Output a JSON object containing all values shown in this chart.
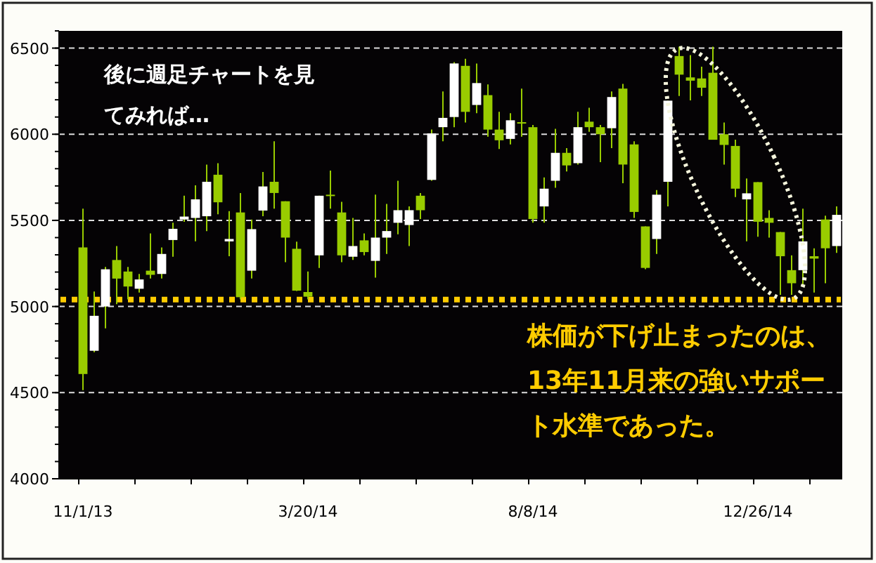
{
  "chart_data": {
    "type": "candlestick",
    "categories": [
      "11/1/13",
      null,
      null,
      null,
      null,
      null,
      null,
      null,
      null,
      null,
      null,
      null,
      null,
      null,
      null,
      null,
      null,
      null,
      null,
      null,
      "3/20/14",
      null,
      null,
      null,
      null,
      null,
      null,
      null,
      null,
      null,
      null,
      null,
      null,
      null,
      null,
      null,
      null,
      null,
      null,
      null,
      "8/8/14",
      null,
      null,
      null,
      null,
      null,
      null,
      null,
      null,
      null,
      null,
      null,
      null,
      null,
      null,
      null,
      null,
      null,
      null,
      null,
      "12/26/14",
      null,
      null,
      null,
      null,
      null,
      null,
      null
    ],
    "ohlc": [
      [
        5343,
        5568,
        4514,
        4608
      ],
      [
        4743,
        5087,
        4735,
        4946
      ],
      [
        5000,
        5230,
        4873,
        5216
      ],
      [
        5270,
        5351,
        5014,
        5162
      ],
      [
        5203,
        5230,
        5041,
        5116
      ],
      [
        5103,
        5189,
        5081,
        5157
      ],
      [
        5208,
        5424,
        5162,
        5184
      ],
      [
        5189,
        5343,
        5162,
        5305
      ],
      [
        5386,
        5486,
        5289,
        5451
      ],
      [
        5505,
        5643,
        5492,
        5522
      ],
      [
        5514,
        5703,
        5378,
        5622
      ],
      [
        5524,
        5824,
        5438,
        5724
      ],
      [
        5765,
        5832,
        5535,
        5605
      ],
      [
        5378,
        5554,
        5292,
        5392
      ],
      [
        5546,
        5659,
        5041,
        5054
      ],
      [
        5208,
        5505,
        5162,
        5449
      ],
      [
        5557,
        5781,
        5524,
        5697
      ],
      [
        5724,
        5959,
        5568,
        5659
      ],
      [
        5611,
        5611,
        5257,
        5400
      ],
      [
        5335,
        5376,
        5090,
        5092
      ],
      [
        5084,
        5203,
        5041,
        5057
      ],
      [
        5297,
        5643,
        5224,
        5643
      ],
      [
        5649,
        5789,
        5568,
        5641
      ],
      [
        5546,
        5608,
        5257,
        5297
      ],
      [
        5289,
        5514,
        5270,
        5351
      ],
      [
        5384,
        5424,
        5297,
        5316
      ],
      [
        5265,
        5649,
        5168,
        5400
      ],
      [
        5400,
        5595,
        5305,
        5438
      ],
      [
        5486,
        5730,
        5419,
        5559
      ],
      [
        5473,
        5581,
        5351,
        5559
      ],
      [
        5643,
        5659,
        5508,
        5559
      ],
      [
        5735,
        6027,
        5730,
        6005
      ],
      [
        6041,
        6249,
        5959,
        6095
      ],
      [
        6100,
        6419,
        6041,
        6411
      ],
      [
        6397,
        6438,
        6068,
        6130
      ],
      [
        6170,
        6411,
        6122,
        6297
      ],
      [
        6227,
        6289,
        5986,
        6027
      ],
      [
        6027,
        6130,
        5914,
        5965
      ],
      [
        5973,
        6122,
        5941,
        6081
      ],
      [
        6070,
        6265,
        5986,
        6065
      ],
      [
        6041,
        6054,
        5486,
        5508
      ],
      [
        5581,
        5749,
        5486,
        5684
      ],
      [
        5730,
        6032,
        5689,
        5892
      ],
      [
        5892,
        5919,
        5784,
        5819
      ],
      [
        5832,
        6130,
        5824,
        6041
      ],
      [
        6073,
        6154,
        6014,
        6041
      ],
      [
        6041,
        6054,
        5838,
        6000
      ],
      [
        6035,
        6249,
        5919,
        6216
      ],
      [
        6265,
        6292,
        5716,
        5824
      ],
      [
        5941,
        5959,
        5514,
        5549
      ],
      [
        5465,
        5465,
        5216,
        5224
      ],
      [
        5392,
        5676,
        5305,
        5649
      ],
      [
        5724,
        6195,
        5581,
        6195
      ],
      [
        6454,
        6508,
        6222,
        6346
      ],
      [
        6330,
        6459,
        6197,
        6311
      ],
      [
        6324,
        6392,
        6222,
        6270
      ],
      [
        6357,
        6508,
        5968,
        5968
      ],
      [
        6000,
        6068,
        5824,
        5938
      ],
      [
        5932,
        5968,
        5635,
        5684
      ],
      [
        5622,
        5743,
        5378,
        5657
      ],
      [
        5722,
        5722,
        5405,
        5492
      ],
      [
        5514,
        5559,
        5400,
        5486
      ],
      [
        5432,
        5432,
        5068,
        5292
      ],
      [
        5211,
        5297,
        5068,
        5135
      ],
      [
        5211,
        5568,
        5122,
        5378
      ],
      [
        5292,
        5338,
        5081,
        5278
      ],
      [
        5505,
        5527,
        5135,
        5338
      ],
      [
        5351,
        5581,
        5311,
        5532
      ]
    ],
    "colors": [
      "#99cc00",
      "#ffffff",
      "#ffffff",
      "#99cc00",
      "#99cc00",
      "#ffffff",
      "#99cc00",
      "#ffffff",
      "#ffffff",
      "#ffffff",
      "#ffffff",
      "#ffffff",
      "#99cc00",
      "#ffffff",
      "#99cc00",
      "#ffffff",
      "#ffffff",
      "#99cc00",
      "#99cc00",
      "#99cc00",
      "#99cc00",
      "#ffffff",
      "#99cc00",
      "#99cc00",
      "#ffffff",
      "#99cc00",
      "#ffffff",
      "#ffffff",
      "#ffffff",
      "#ffffff",
      "#99cc00",
      "#ffffff",
      "#ffffff",
      "#ffffff",
      "#99cc00",
      "#ffffff",
      "#99cc00",
      "#99cc00",
      "#ffffff",
      "#99cc00",
      "#99cc00",
      "#ffffff",
      "#ffffff",
      "#99cc00",
      "#ffffff",
      "#99cc00",
      "#99cc00",
      "#ffffff",
      "#99cc00",
      "#99cc00",
      "#99cc00",
      "#ffffff",
      "#ffffff",
      "#99cc00",
      "#99cc00",
      "#99cc00",
      "#99cc00",
      "#99cc00",
      "#99cc00",
      "#ffffff",
      "#99cc00",
      "#99cc00",
      "#99cc00",
      "#99cc00",
      "#ffffff",
      "#99cc00",
      "#99cc00",
      "#ffffff"
    ],
    "ylim": [
      4000,
      6600
    ],
    "yticks": [
      4000,
      4500,
      5000,
      5500,
      6000,
      6500
    ],
    "grid": "y",
    "ref_lines": [
      {
        "axis": "y",
        "value": 5040,
        "color": "#ffcc00",
        "line_style": "dotted"
      }
    ],
    "annotations": [
      "後に週足チャートを見てみれば…",
      "株価が下げ止まったのは、13年11月来の強いサポート水準であった。"
    ]
  }
}
